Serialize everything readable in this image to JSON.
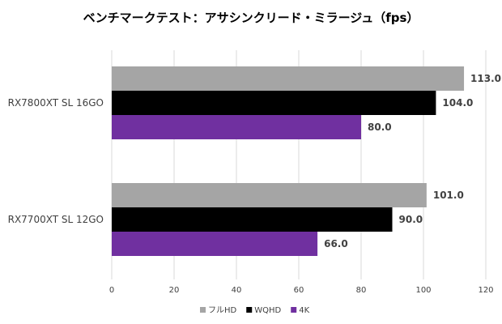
{
  "chart_data": {
    "type": "bar",
    "orientation": "horizontal",
    "title": "ベンチマークテスト：アサシンクリード・ミラージュ（fps）",
    "categories": [
      "RX7800XT SL 16GO",
      "RX7700XT SL 12GO"
    ],
    "series": [
      {
        "name": "フルHD",
        "color": "#a5a5a5",
        "values": [
          113.0,
          101.0
        ]
      },
      {
        "name": "WQHD",
        "color": "#000000",
        "values": [
          104.0,
          90.0
        ]
      },
      {
        "name": "4K",
        "color": "#7030a0",
        "values": [
          80.0,
          66.0
        ]
      }
    ],
    "xlim": [
      0,
      120
    ],
    "xticks": [
      0,
      20,
      40,
      60,
      80,
      100,
      120
    ],
    "grid": true,
    "legend_position": "bottom",
    "value_decimals": 1
  }
}
